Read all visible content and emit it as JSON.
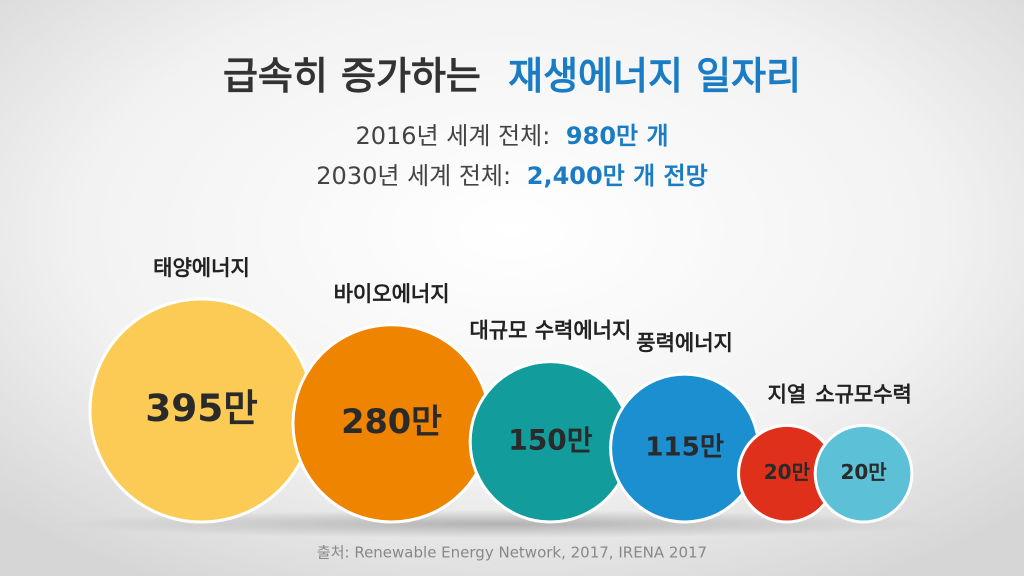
{
  "chart_data": {
    "type": "bubble",
    "title": "급속히 증가하는",
    "title_highlight": "재생에너지 일자리",
    "subtitles": [
      {
        "text": "2016년 세계 전체:",
        "highlight": "980만 개"
      },
      {
        "text": "2030년 세계 전체:",
        "highlight": "2,400만 개 전망"
      }
    ],
    "categories": [
      "태양에너지",
      "바이오에너지",
      "대규모 수력에너지",
      "풍력에너지",
      "지열",
      "소규모수력"
    ],
    "values": [
      395,
      280,
      150,
      115,
      20,
      20
    ],
    "value_labels": [
      "395만",
      "280만",
      "150만",
      "115만",
      "20만",
      "20만"
    ],
    "colors": [
      "#fbcb55",
      "#ee8400",
      "#129c9c",
      "#1b8fcf",
      "#df301b",
      "#5cc0d7"
    ],
    "source": "출처: Renewable Energy Network, 2017, IRENA 2017"
  }
}
